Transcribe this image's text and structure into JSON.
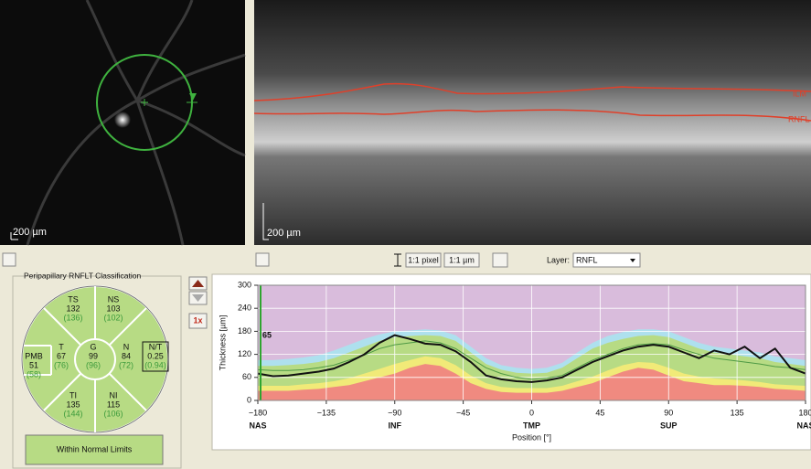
{
  "fundus": {
    "scale_label": "200 µm"
  },
  "oct": {
    "scale_label": "200 µm",
    "ilm_label": "ILM",
    "rnfl_label": "RNFL"
  },
  "toolbar": {
    "pixel_button": "1:1 pixel",
    "micron_button": "1:1 µm",
    "layer_label": "Layer:",
    "layer_value": "RNFL"
  },
  "rnflt_classification": {
    "title": "Peripapillary RNFLT Classification",
    "sectors": [
      {
        "label": "TS",
        "value": "132",
        "reference": "(136)"
      },
      {
        "label": "NS",
        "value": "103",
        "reference": "(102)"
      },
      {
        "label": "PMB",
        "value": "51",
        "reference": "(58)"
      },
      {
        "label": "T",
        "value": "67",
        "reference": "(76)"
      },
      {
        "label": "G",
        "value": "99",
        "reference": "(96)"
      },
      {
        "label": "N",
        "value": "84",
        "reference": "(72)"
      },
      {
        "label": "N/T",
        "value": "0.25",
        "reference": "(0.94)"
      },
      {
        "label": "TI",
        "value": "135",
        "reference": "(144)"
      },
      {
        "label": "NI",
        "value": "115",
        "reference": "(106)"
      }
    ],
    "result": "Within Normal Limits"
  },
  "zoom_button": "1x",
  "chart_data": {
    "type": "line",
    "ylabel": "Thickness [µm]",
    "xlabel": "Position [°]",
    "cursor_value": "65",
    "xlim": [
      -180,
      180
    ],
    "ylim": [
      0,
      300
    ],
    "yticks": [
      0,
      60,
      120,
      180,
      240,
      300
    ],
    "xticks": [
      {
        "value": -180,
        "label": "−180"
      },
      {
        "value": -135,
        "label": "−135"
      },
      {
        "value": -90,
        "label": "−90"
      },
      {
        "value": -45,
        "label": "−45"
      },
      0,
      45,
      90,
      135,
      180
    ],
    "region_labels": [
      {
        "value": -180,
        "label": "NAS"
      },
      {
        "value": -90,
        "label": "INF"
      },
      {
        "value": 0,
        "label": "TMP"
      },
      {
        "value": 90,
        "label": "SUP"
      },
      {
        "value": 180,
        "label": "NAS"
      }
    ],
    "grid": true,
    "background": "#d9bcdc",
    "x": [
      -180,
      -170,
      -160,
      -150,
      -140,
      -130,
      -120,
      -110,
      -100,
      -90,
      -80,
      -70,
      -60,
      -50,
      -40,
      -30,
      -20,
      -10,
      0,
      10,
      20,
      30,
      40,
      50,
      60,
      70,
      80,
      90,
      100,
      110,
      120,
      130,
      140,
      150,
      160,
      170,
      180
    ],
    "bands": [
      {
        "color": "#aee0ee",
        "values": [
          105,
          105,
          108,
          112,
          118,
          130,
          145,
          160,
          172,
          180,
          182,
          185,
          182,
          170,
          140,
          110,
          92,
          85,
          82,
          85,
          98,
          125,
          150,
          168,
          178,
          185,
          185,
          180,
          165,
          150,
          140,
          135,
          130,
          125,
          115,
          110,
          105
        ]
      },
      {
        "color": "#b7db84",
        "values": [
          90,
          90,
          92,
          95,
          100,
          110,
          125,
          140,
          155,
          165,
          168,
          170,
          168,
          155,
          125,
          95,
          80,
          72,
          70,
          72,
          85,
          110,
          135,
          150,
          160,
          168,
          170,
          165,
          150,
          135,
          125,
          120,
          115,
          110,
          100,
          95,
          90
        ]
      },
      {
        "color": "#f1ea78",
        "values": [
          38,
          38,
          38,
          42,
          45,
          50,
          58,
          70,
          82,
          95,
          105,
          115,
          110,
          92,
          65,
          45,
          35,
          32,
          32,
          32,
          38,
          50,
          62,
          78,
          92,
          100,
          98,
          85,
          70,
          62,
          57,
          55,
          52,
          48,
          42,
          40,
          38
        ]
      },
      {
        "color": "#f08a80",
        "values": [
          25,
          25,
          25,
          28,
          30,
          35,
          40,
          50,
          60,
          70,
          85,
          95,
          90,
          70,
          45,
          30,
          22,
          20,
          20,
          20,
          25,
          35,
          45,
          60,
          75,
          85,
          80,
          65,
          50,
          45,
          40,
          40,
          38,
          35,
          30,
          28,
          25
        ]
      }
    ],
    "series": [
      {
        "color": "#4f9a45",
        "values": [
          80,
          78,
          78,
          80,
          85,
          92,
          105,
          118,
          135,
          145,
          150,
          155,
          150,
          135,
          110,
          85,
          70,
          60,
          55,
          58,
          65,
          85,
          105,
          120,
          135,
          145,
          148,
          145,
          132,
          120,
          110,
          105,
          100,
          95,
          88,
          85,
          80
        ]
      },
      {
        "color": "#111111",
        "values": [
          70,
          63,
          65,
          70,
          75,
          83,
          100,
          120,
          150,
          170,
          160,
          148,
          145,
          128,
          100,
          65,
          55,
          50,
          48,
          52,
          60,
          80,
          100,
          115,
          130,
          140,
          145,
          140,
          125,
          110,
          130,
          120,
          140,
          110,
          135,
          85,
          70
        ]
      }
    ]
  }
}
